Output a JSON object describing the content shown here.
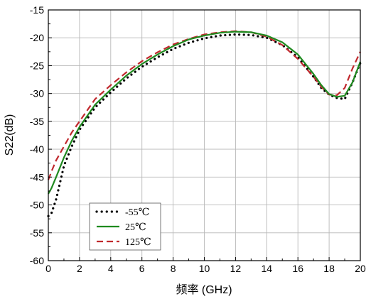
{
  "chart_data": {
    "type": "line",
    "title": "",
    "xlabel": "频率 (GHz)",
    "ylabel": "S22(dB)",
    "xlim": [
      0,
      20
    ],
    "ylim": [
      -60,
      -15
    ],
    "xticks": [
      0,
      2,
      4,
      6,
      8,
      10,
      12,
      14,
      16,
      18,
      20
    ],
    "yticks": [
      -15,
      -20,
      -25,
      -30,
      -35,
      -40,
      -45,
      -50,
      -55,
      -60
    ],
    "grid": true,
    "legend_position": "bottom-left",
    "series": [
      {
        "name": "-55℃",
        "style": "dotted",
        "color": "#000000",
        "x": [
          0,
          0.2,
          0.5,
          1,
          1.5,
          2,
          3,
          4,
          5,
          6,
          7,
          8,
          9,
          10,
          11,
          12,
          13,
          14,
          15,
          16,
          17,
          17.5,
          18,
          18.5,
          19,
          19.5,
          20
        ],
        "y": [
          -52,
          -51.5,
          -49,
          -43,
          -39.5,
          -36.5,
          -32.5,
          -29.8,
          -27.3,
          -25.2,
          -23.5,
          -22,
          -20.9,
          -20.1,
          -19.6,
          -19.4,
          -19.5,
          -20,
          -21.3,
          -23.5,
          -27,
          -29,
          -30.2,
          -30.8,
          -31,
          -28,
          -24.5
        ]
      },
      {
        "name": "25℃",
        "style": "solid",
        "color": "#1f8a1f",
        "x": [
          0,
          0.2,
          0.5,
          1,
          1.5,
          2,
          3,
          4,
          5,
          6,
          7,
          8,
          9,
          10,
          11,
          12,
          13,
          14,
          15,
          16,
          17,
          17.5,
          18,
          18.5,
          19,
          19.5,
          20
        ],
        "y": [
          -48,
          -47,
          -45,
          -41.5,
          -38.5,
          -36,
          -32,
          -29.3,
          -26.8,
          -24.7,
          -23,
          -21.5,
          -20.3,
          -19.6,
          -19.1,
          -18.9,
          -19,
          -19.6,
          -20.8,
          -23,
          -26.5,
          -28.5,
          -30.1,
          -30.6,
          -30.4,
          -28,
          -24.3
        ]
      },
      {
        "name": "125℃",
        "style": "dashed",
        "color": "#c0282d",
        "x": [
          0,
          0.2,
          0.5,
          1,
          1.5,
          2,
          3,
          4,
          5,
          6,
          7,
          8,
          9,
          10,
          11,
          12,
          13,
          14,
          15,
          16,
          17,
          17.5,
          18,
          18.5,
          19,
          19.5,
          20
        ],
        "y": [
          -45.5,
          -44,
          -42,
          -39.5,
          -37,
          -35,
          -31,
          -28.5,
          -26.2,
          -24.2,
          -22.6,
          -21.2,
          -20.2,
          -19.4,
          -19,
          -18.8,
          -19,
          -19.8,
          -21.3,
          -23.8,
          -27,
          -28.8,
          -30.2,
          -30.3,
          -29,
          -25.5,
          -22.5
        ]
      }
    ]
  }
}
